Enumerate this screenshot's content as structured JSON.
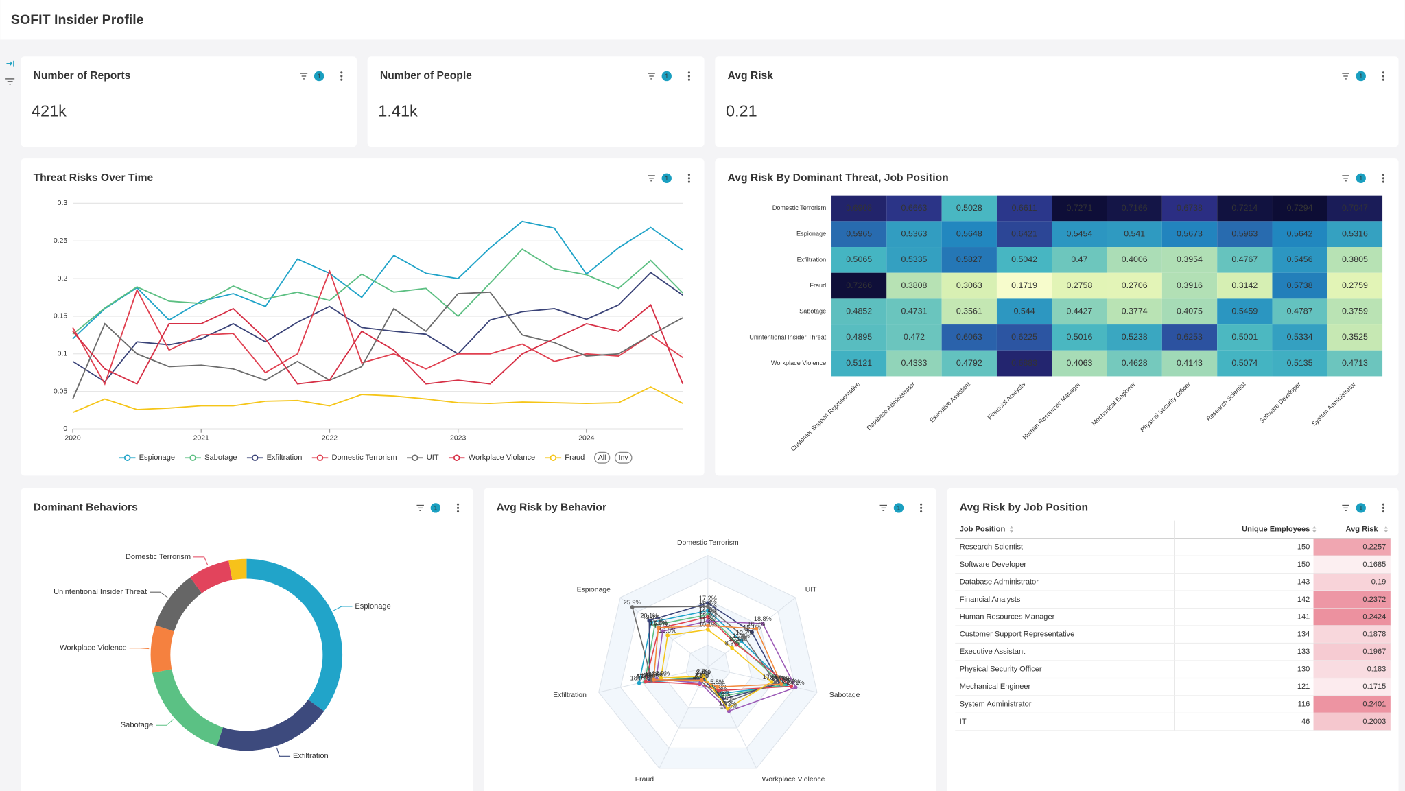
{
  "header": {
    "title": "SOFIT Insider Profile"
  },
  "kpis": [
    {
      "title": "Number of Reports",
      "value": "421k",
      "filters": 1
    },
    {
      "title": "Number of People",
      "value": "1.41k",
      "filters": 1
    },
    {
      "title": "Avg Risk",
      "value": "0.21",
      "filters": 1
    }
  ],
  "chart_data": [
    {
      "type": "line",
      "title": "Threat Risks Over Time",
      "filters": 1,
      "x": [
        2020,
        2020.25,
        2020.5,
        2020.75,
        2021,
        2021.25,
        2021.5,
        2021.75,
        2022,
        2022.25,
        2022.5,
        2022.75,
        2023,
        2023.25,
        2023.5,
        2023.75,
        2024,
        2024.25,
        2024.5,
        2024.75
      ],
      "xlim": [
        2020,
        2024.75
      ],
      "xticks": [
        2020,
        2021,
        2022,
        2023,
        2024
      ],
      "ylim": [
        0,
        0.3
      ],
      "yticks": [
        0,
        0.05,
        0.1,
        0.15,
        0.2,
        0.25,
        0.3
      ],
      "grid": true,
      "series": [
        {
          "name": "Espionage",
          "color": "#1fa3c8",
          "values": [
            0.12,
            0.16,
            0.188,
            0.145,
            0.17,
            0.18,
            0.163,
            0.226,
            0.207,
            0.175,
            0.231,
            0.207,
            0.2,
            0.241,
            0.276,
            0.267,
            0.206,
            0.241,
            0.268,
            0.238
          ]
        },
        {
          "name": "Sabotage",
          "color": "#5cbf82",
          "values": [
            0.126,
            0.161,
            0.189,
            0.17,
            0.167,
            0.19,
            0.173,
            0.182,
            0.171,
            0.206,
            0.182,
            0.187,
            0.15,
            0.194,
            0.239,
            0.213,
            0.205,
            0.187,
            0.224,
            0.181
          ]
        },
        {
          "name": "Exfiltration",
          "color": "#3a4378",
          "values": [
            0.09,
            0.063,
            0.116,
            0.112,
            0.12,
            0.14,
            0.116,
            0.142,
            0.163,
            0.135,
            0.13,
            0.126,
            0.1,
            0.145,
            0.156,
            0.16,
            0.146,
            0.165,
            0.208,
            0.178
          ]
        },
        {
          "name": "Domestic Terrorism",
          "color": "#e04050",
          "values": [
            0.135,
            0.06,
            0.185,
            0.105,
            0.125,
            0.127,
            0.075,
            0.1,
            0.21,
            0.088,
            0.1,
            0.08,
            0.1,
            0.1,
            0.113,
            0.09,
            0.1,
            0.097,
            0.125,
            0.095
          ]
        },
        {
          "name": "UIT",
          "color": "#6b6b6b",
          "values": [
            0.04,
            0.14,
            0.1,
            0.083,
            0.085,
            0.08,
            0.065,
            0.09,
            0.065,
            0.083,
            0.16,
            0.13,
            0.18,
            0.182,
            0.125,
            0.115,
            0.097,
            0.1,
            0.125,
            0.148
          ]
        },
        {
          "name": "Workplace Violance",
          "color": "#d62f45",
          "values": [
            0.13,
            0.08,
            0.06,
            0.14,
            0.14,
            0.16,
            0.12,
            0.06,
            0.065,
            0.13,
            0.105,
            0.06,
            0.065,
            0.06,
            0.1,
            0.12,
            0.14,
            0.13,
            0.165,
            0.06
          ]
        },
        {
          "name": "Fraud",
          "color": "#f5c518",
          "values": [
            0.022,
            0.04,
            0.026,
            0.028,
            0.031,
            0.031,
            0.037,
            0.038,
            0.031,
            0.046,
            0.044,
            0.04,
            0.035,
            0.034,
            0.036,
            0.035,
            0.034,
            0.035,
            0.056,
            0.034
          ]
        }
      ],
      "legend_buttons": [
        "All",
        "Inv"
      ]
    },
    {
      "type": "heatmap",
      "title": "Avg Risk By Dominant Threat, Job Position",
      "filters": 1,
      "y_categories": [
        "Domestic Terrorism",
        "Espionage",
        "Exfiltration",
        "Fraud",
        "Sabotage",
        "Unintentional Insider Threat",
        "Workplace Violence"
      ],
      "x_categories": [
        "Customer Support Representative",
        "Database Administrator",
        "Executive Assistant",
        "Financial Analysts",
        "Human Resources Manager",
        "Mechanical Engineer",
        "Physical Security Officer",
        "Research Scientist",
        "Software Developer",
        "System Administrator"
      ],
      "values": [
        [
          0.6908,
          0.6663,
          0.5028,
          0.6611,
          0.7271,
          0.7166,
          0.6738,
          0.7214,
          0.7294,
          0.7047
        ],
        [
          0.5965,
          0.5363,
          0.5648,
          0.6421,
          0.5454,
          0.541,
          0.5673,
          0.5963,
          0.5642,
          0.5316
        ],
        [
          0.5065,
          0.5335,
          0.5827,
          0.5042,
          0.47,
          0.4006,
          0.3954,
          0.4767,
          0.5456,
          0.3805
        ],
        [
          0.7266,
          0.3808,
          0.3063,
          0.1719,
          0.2758,
          0.2706,
          0.3916,
          0.3142,
          0.5738,
          0.2759
        ],
        [
          0.4852,
          0.4731,
          0.3561,
          0.544,
          0.4427,
          0.3774,
          0.4075,
          0.5459,
          0.4787,
          0.3759
        ],
        [
          0.4895,
          0.472,
          0.6063,
          0.6225,
          0.5016,
          0.5238,
          0.6253,
          0.5001,
          0.5334,
          0.3525
        ],
        [
          0.5121,
          0.4333,
          0.4792,
          0.6883,
          0.4063,
          0.4628,
          0.4143,
          0.5074,
          0.5135,
          0.4713
        ]
      ],
      "colorscale": [
        "#f7fccc",
        "#eef8c0",
        "#e0f3b4",
        "#cdebb2",
        "#b0dfb5",
        "#83cfbb",
        "#45b5c2",
        "#2189c0",
        "#2c58a5",
        "#2b2e83",
        "#0d0d35"
      ]
    },
    {
      "type": "donut",
      "title": "Dominant Behaviors",
      "filters": 1,
      "categories": [
        "Espionage",
        "Exfiltration",
        "Sabotage",
        "Workplace Violence",
        "Unintentional Insider Threat",
        "Domestic Terrorism",
        null
      ],
      "values": [
        35,
        20,
        17,
        8,
        10,
        7,
        3
      ],
      "colors": [
        "#21a4c9",
        "#3d4a7d",
        "#5bc184",
        "#f5813f",
        "#666666",
        "#e2445c",
        "#f7c21a"
      ]
    },
    {
      "type": "radar",
      "title": "Avg Risk by Behavior",
      "filters": 1,
      "axes": [
        "Domestic Terrorism",
        "UIT",
        "Sabotage",
        "Workplace Violence",
        "Fraud",
        "Exfiltration",
        "Espionage"
      ],
      "rlim": [
        0,
        30
      ],
      "series": [
        {
          "color": "#1fa3c8",
          "values": [
            15.2,
            11.4,
            21.6,
            7.8,
            3.1,
            18.9,
            19.4
          ],
          "value_labels": [
            "15.2%",
            "11.4%",
            "21.6%",
            "7.8%",
            "3.1%",
            "18.9%",
            "19.4%"
          ]
        },
        {
          "color": "#5cbf82",
          "values": [
            14.1,
            10.2,
            20.8,
            8.6,
            2.8,
            17.3,
            18.2
          ],
          "value_labels": [
            "14.1%",
            "10.2%",
            "20.8%",
            "8.6%",
            "2.8%",
            "17.3%",
            "18.2%"
          ]
        },
        {
          "color": "#3a4378",
          "values": [
            17.2,
            15.1,
            19.7,
            9.4,
            3.4,
            16.0,
            20.1
          ],
          "value_labels": [
            "17.2%",
            "15.1%",
            "19.7%",
            "9.4%",
            "3.4%",
            "16.0%",
            "20.1%"
          ]
        },
        {
          "color": "#e04050",
          "values": [
            13.5,
            9.8,
            22.9,
            6.9,
            5.0,
            17.1,
            16.8
          ],
          "value_labels": [
            "13.5%",
            "9.8%",
            "22.9%",
            "6.9%",
            "5.0%",
            "17.1%",
            "16.8%"
          ]
        },
        {
          "color": "#6b6b6b",
          "values": [
            16.3,
            12.7,
            18.6,
            10.6,
            4.1,
            15.4,
            25.9
          ],
          "value_labels": [
            "16.3%",
            "12.7%",
            "18.6%",
            "10.6%",
            "4.1%",
            "15.4%",
            "25.9%"
          ]
        },
        {
          "color": "#9b59b6",
          "values": [
            12.4,
            18.8,
            24.1,
            13.0,
            4.7,
            14.2,
            15.5
          ],
          "value_labels": [
            "12.4%",
            "18.8%",
            "24.1%",
            "13.0%",
            "4.7%",
            "14.2%",
            "15.5%"
          ]
        },
        {
          "color": "#f5c518",
          "values": [
            10.1,
            8.3,
            17.5,
            12.2,
            2.6,
            12.9,
            13.8
          ],
          "value_labels": [
            "10.1%",
            "8.3%",
            "17.5%",
            "12.2%",
            "2.6%",
            "12.9%",
            "13.8%"
          ]
        },
        {
          "color": "#f28a3c",
          "values": [
            11.2,
            16.6,
            20.2,
            5.8,
            3.8,
            14.9,
            17.0
          ],
          "value_labels": [
            "11.2%",
            "16.6%",
            "20.2%",
            "5.8%",
            "3.8%",
            "14.9%",
            "17.0%"
          ]
        }
      ]
    }
  ],
  "table": {
    "title": "Avg Risk by Job Position",
    "filters": 1,
    "color": "#e8798a",
    "columns": [
      "Job Position",
      "Unique Employees",
      "Avg Risk"
    ],
    "rows": [
      [
        "Research Scientist",
        150,
        0.2257
      ],
      [
        "Software Developer",
        150,
        0.1685
      ],
      [
        "Database Administrator",
        143,
        0.19
      ],
      [
        "Financial Analysts",
        142,
        0.2372
      ],
      [
        "Human Resources Manager",
        141,
        0.2424
      ],
      [
        "Customer Support Representative",
        134,
        0.1878
      ],
      [
        "Executive Assistant",
        133,
        0.1967
      ],
      [
        "Physical Security Officer",
        130,
        0.183
      ],
      [
        "Mechanical Engineer",
        121,
        0.1715
      ],
      [
        "System Administrator",
        116,
        0.2401
      ],
      [
        "IT",
        46,
        0.2003
      ]
    ]
  }
}
